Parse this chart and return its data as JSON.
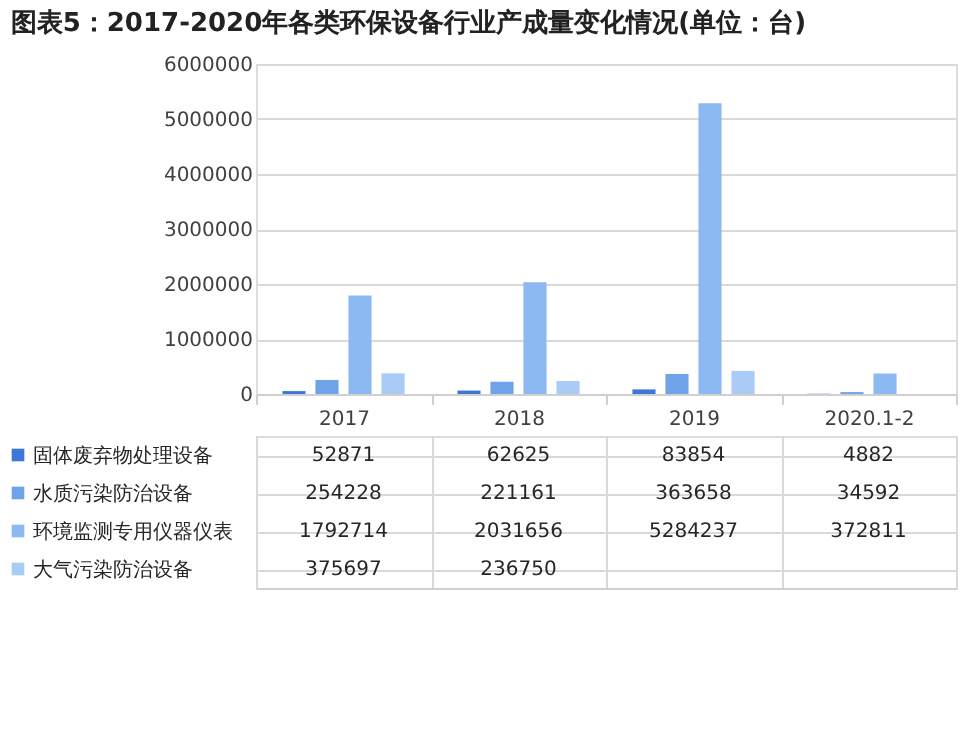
{
  "chart_data": {
    "type": "bar",
    "title": "图表5：2017-2020年各类环保设备行业产成量变化情况(单位：台)",
    "categories": [
      "2017",
      "2018",
      "2019",
      "2020.1-2"
    ],
    "series": [
      {
        "name": "固体废弃物处理设备",
        "color": "#3d78d8",
        "values": [
          52871,
          62625,
          83854,
          4882
        ],
        "value_labels": [
          "52871",
          "62625",
          "83854",
          "4882"
        ]
      },
      {
        "name": "水质污染防治设备",
        "color": "#6fa3e8",
        "values": [
          254228,
          221161,
          363658,
          34592
        ],
        "value_labels": [
          "254228",
          "221161",
          "363658",
          "34592"
        ]
      },
      {
        "name": "环境监测专用仪器仪表",
        "color": "#8db9f3",
        "values": [
          1792714,
          2031656,
          5284237,
          372811
        ],
        "value_labels": [
          "1792714",
          "2031656",
          "5284237",
          "372811"
        ]
      },
      {
        "name": "大气污染防治设备",
        "color": "#aacbf6",
        "values": [
          375697,
          236750,
          420000,
          null
        ],
        "value_labels": [
          "375697",
          "236750",
          null,
          null
        ]
      }
    ],
    "ylim": [
      0,
      6000000
    ],
    "yticks": [
      0,
      1000000,
      2000000,
      3000000,
      4000000,
      5000000,
      6000000
    ],
    "grid": "y",
    "legend": "bottom"
  }
}
